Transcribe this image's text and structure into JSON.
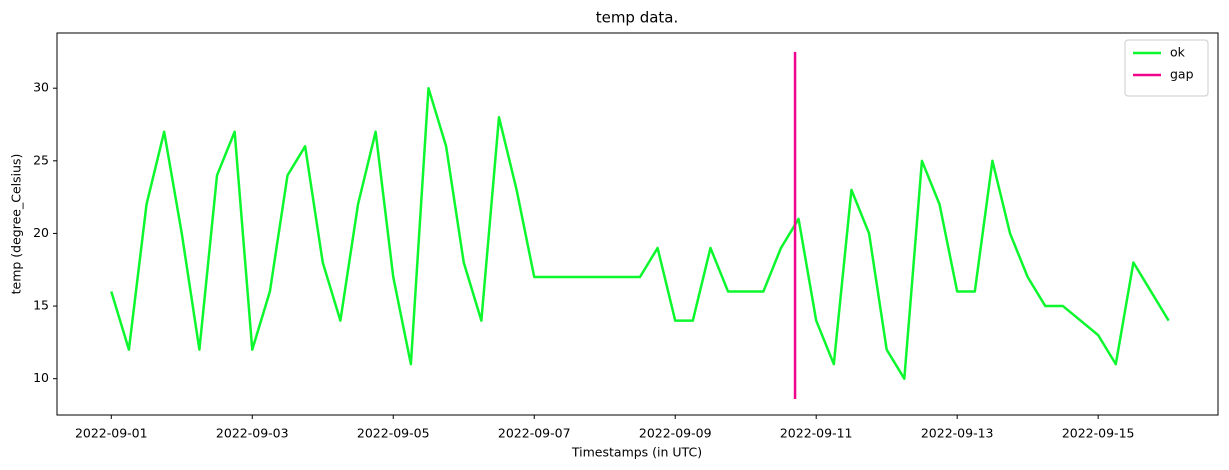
{
  "chart_data": {
    "type": "line",
    "title": "temp data.",
    "x_label": "Timestamps (in UTC)",
    "y_label": "temp (degree_Celsius)",
    "xlim": [
      0.23,
      16.7
    ],
    "ylim": [
      7.5,
      33.8
    ],
    "xticks": [
      {
        "value": 1,
        "label": "2022-09-01"
      },
      {
        "value": 3,
        "label": "2022-09-03"
      },
      {
        "value": 5,
        "label": "2022-09-05"
      },
      {
        "value": 7,
        "label": "2022-09-07"
      },
      {
        "value": 9,
        "label": "2022-09-09"
      },
      {
        "value": 11,
        "label": "2022-09-11"
      },
      {
        "value": 13,
        "label": "2022-09-13"
      },
      {
        "value": 15,
        "label": "2022-09-15"
      }
    ],
    "yticks": [
      10,
      15,
      20,
      25,
      30
    ],
    "grid": false,
    "legend": "upper right",
    "series": [
      {
        "name": "ok",
        "color": "#0df72e",
        "x": [
          1.0,
          1.25,
          1.5,
          1.75,
          2.0,
          2.25,
          2.5,
          2.75,
          3.0,
          3.25,
          3.5,
          3.75,
          4.0,
          4.25,
          4.5,
          4.75,
          5.0,
          5.25,
          5.5,
          5.75,
          6.0,
          6.25,
          6.5,
          6.75,
          7.0,
          7.25,
          7.5,
          7.75,
          8.0,
          8.25,
          8.5,
          8.75,
          9.0,
          9.25,
          9.5,
          9.75,
          10.0,
          10.25,
          10.5,
          10.75,
          11.0,
          11.25,
          11.5,
          11.75,
          12.0,
          12.25,
          12.5,
          12.75,
          13.0,
          13.25,
          13.5,
          13.75,
          14.0,
          14.25,
          14.5,
          14.75,
          15.0,
          15.25,
          15.5,
          15.75,
          16.0
        ],
        "values": [
          16,
          12,
          22,
          27,
          20,
          12,
          24,
          27,
          12,
          16,
          24,
          26,
          18,
          14,
          22,
          27,
          17,
          11,
          30,
          26,
          18,
          14,
          28,
          23,
          17,
          17,
          17,
          17,
          17,
          17,
          17,
          19,
          14,
          14,
          19,
          16,
          16,
          16,
          19,
          21,
          14,
          11,
          23,
          20,
          12,
          10,
          25,
          22,
          16,
          16,
          25,
          20,
          17,
          15,
          15,
          14,
          13,
          11,
          18,
          16,
          14
        ]
      },
      {
        "name": "gap",
        "color": "#f0068c",
        "x": [
          10.7,
          10.7
        ],
        "values": [
          8.6,
          32.5
        ]
      }
    ]
  }
}
